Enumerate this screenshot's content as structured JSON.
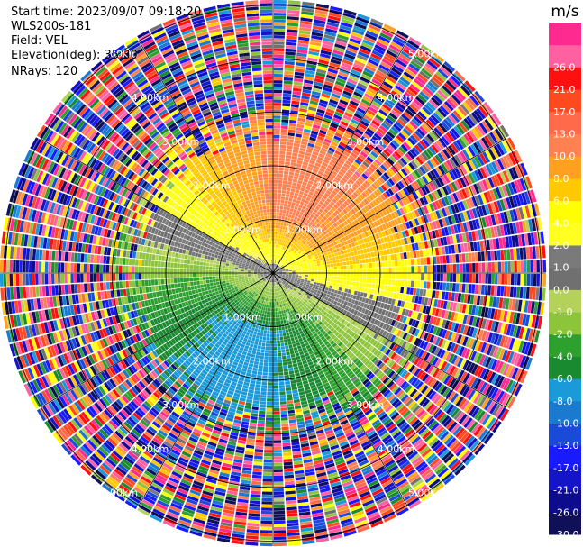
{
  "header": {
    "start_time": "Start time: 2023/09/07 09:18:20",
    "instrument": "WLS200s-181",
    "field": "Field: VEL",
    "elevation": "Elevation(deg): 35.30",
    "nrays": "NRays: 120"
  },
  "chart_data": {
    "type": "heatmap",
    "projection": "polar-ppi",
    "field": "VEL",
    "nrays": 120,
    "units": "m/s",
    "range_ring_labels": [
      "1.00km",
      "2.00km",
      "3.00km",
      "4.00km",
      "5.00km"
    ],
    "colorbar": {
      "label": "m/s",
      "levels": [
        -30.0,
        -26.0,
        -21.0,
        -17.0,
        -13.0,
        -10.0,
        -8.0,
        -6.0,
        -4.0,
        -2.0,
        -1.0,
        0.0,
        1.0,
        2.0,
        4.0,
        6.0,
        8.0,
        10.0,
        13.0,
        17.0,
        21.0,
        26.0
      ],
      "tick_labels": [
        "-30.0",
        "-26.0",
        "-21.0",
        "-17.0",
        "-13.0",
        "-10.0",
        "-8.0",
        "-6.0",
        "-4.0",
        "-2.0",
        "-1.0",
        "0.0",
        "1.0",
        "2.0",
        "4.0",
        "6.0",
        "8.0",
        "10.0",
        "13.0",
        "17.0",
        "21.0",
        "26.0"
      ],
      "colors": [
        "#101058",
        "#0c0c8c",
        "#1414c8",
        "#1a1aff",
        "#1a4ad8",
        "#1a7ad0",
        "#1a9ad8",
        "#1a8a30",
        "#2ea02e",
        "#8cc43a",
        "#b4d25a",
        "#707070",
        "#7a7a7a",
        "#ffff22",
        "#ffff00",
        "#ffc800",
        "#ffa020",
        "#ff8050",
        "#ff6a4a",
        "#ff4a20",
        "#ff1010",
        "#ff60a0",
        "#ff2a90"
      ]
    }
  }
}
